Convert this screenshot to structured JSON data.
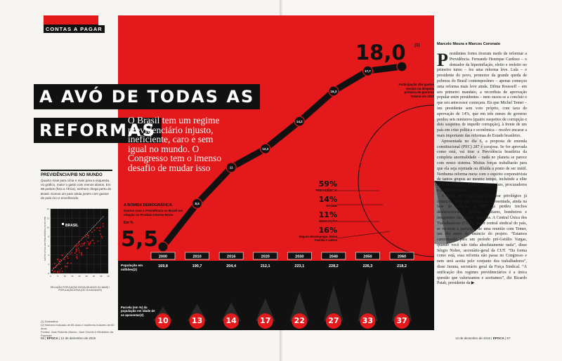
{
  "section": "CONTAS A PAGAR",
  "headline": {
    "line1": "A AVÓ DE TODAS AS",
    "line2": "REFORMAS"
  },
  "standfirst": "O Brasil tem um regime previdenciário injusto, ineficiente, caro e sem igual no mundo. O Congresso tem o imenso desafio de mudar isso",
  "sidebar": {
    "title": "PREVIDÊNCIA/PIB NO MUNDO",
    "text": "Quanto mais para cima e mais para a esquerda, no gráfico, maior o gasto com menos idosos. Em 86 países (fora a África), nenhum chega perto do Brasil. Somos um país ainda jovem com gastos de país rico e envelhecido",
    "brasil_label": "BRASIL",
    "y_axis_label": "GASTO ATUAL EM PREVIDÊNCIA (% DO PIB)",
    "x_axis_label": "RELAÇÃO POPULAÇÃO IDOSA (65 ANOS OU MAIS) / POPULAÇÃO ATIVA (DE 15 A 64 ANOS)",
    "y_ticks": [
      "0",
      "2",
      "4",
      "6",
      "8",
      "10",
      "12",
      "14"
    ],
    "x_ticks": [
      "0",
      "5",
      "10",
      "15",
      "20",
      "25",
      "30",
      "35",
      "40"
    ],
    "footnotes": [
      "(1) Estimativa",
      "(2) Número indicado de 65 anos e mulheres maiores de 60 anos",
      "Fontes: José Roberto Afonso, José Cechin e Ministério da Fazenda"
    ]
  },
  "demography": {
    "title": "A BOMBA DEMOGRÁFICA",
    "subtitle": "Gastos com a Previdência no Brasil em relação ao Produto Interno Bruto",
    "unit": "Em %",
    "start_value": "5,5",
    "end_value": "18,0",
    "end_note": "(1)",
    "annotation": "Participação dos gastos sociais na despesa primária do governo federal em 2016",
    "line_values": [
      "5,5",
      "8,5",
      "11",
      "12,3",
      "14,2",
      "16,3",
      "17,7",
      "18,0"
    ],
    "pop_label": "População em milhões(2)",
    "ratio_label": "Parcela (em %) da população em idade de se aposentar(2)"
  },
  "chart_data": {
    "type": "line",
    "title": "A BOMBA DEMOGRÁFICA",
    "ylabel": "Em %",
    "x": [
      "2000",
      "2010",
      "2016",
      "2020",
      "2030",
      "2040",
      "2050",
      "2060"
    ],
    "series": [
      {
        "name": "Gastos com a Previdência/PIB",
        "values": [
          5.5,
          8.5,
          11,
          12.3,
          14.2,
          16.3,
          17.7,
          18.0
        ]
      }
    ],
    "population_millions": [
      "169,8",
      "190,7",
      "204,4",
      "212,1",
      "223,1",
      "228,2",
      "226,3",
      "218,2"
    ],
    "retirement_age_share": [
      "10",
      "13",
      "14",
      "17",
      "22",
      "27",
      "33",
      "37"
    ]
  },
  "social_spending": [
    {
      "value": "59%",
      "label": "PREVIDÊNCIA"
    },
    {
      "value": "14%",
      "label": "SAÚDE"
    },
    {
      "value": "11%",
      "label": "EDUCAÇÃO"
    },
    {
      "value": "16%",
      "label": "Seguro-desemprego, Bolsa Família e outros"
    }
  ],
  "article": {
    "byline": "Marcelo Moura e Marcos Coronato",
    "paragraphs": [
      "Presidentes fortes tiveram medo de reformar a Previdência. Fernando Henrique Cardoso – o domador da hiperinflação, eleito e reeleito no primeiro turno – fez uma reforma leve. Lula – o presidente do povo, promotor da grande queda de pobreza do Brasil contemporâneo – apenas começou uma reforma mais leve ainda. Dilma Rousseff – em seu primeiro mandato, a recordista de aprovação popular entre presidentes – nem ousou se a concluir o que seu antecessor começara. Eis que Michel Temer – um presidente sem voto próprio, com taxa de aprovação de 14%, que em três meses de governo perdeu seis ministros (quatro suspeitos de corrupção e dois suspeitos de impedir corrupção), à frente de um país em crise política e econômica – resolve encarar a mais importante das reformas do Estado brasileiro.",
      "Apresentada no dia 6, a proposta de emenda constitucional (PEC) 287 é corajosa. Se for aprovada como está, vai tirar a Previdência brasileira da completa anormalidade – nada no planeta se parece com nosso sistema. Muitas forças trabalharão para que ela seja rejeitada ou diluída a ponto de ser inútil. Nenhuma reforma mexe com o espírito corporativista de tantos grupos ao mesmo tempo, incluindo a elite do funcionalismo público, como juízes, procuradores e auditores fiscais.",
      "A briga de força para preservar privilégios já começou. Dois dias depois de apresentada, ainda na fase de redação, a PEC já perdeu trechos desfavoráveis a policiais militares, bombeiros e integrantes das Forças Armadas. A Central Única dos Trabalhadores (CUT), maior central sindical do país, se recusou a participar de uma reunião com Temer, um dia antes do anúncio do projeto. “Estamos caminhando para um período pré-Getúlio Vargas, quando você não tinha absolutamente nada”, disse Sérgio Nobre, secretário-geral da CUT. “Da forma como está, essa reforma não passa no Congresso e nem será aceita pelo conjunto dos trabalhadores”, disse Juruna, secretário geral da Força Sindical. “A unificação dos regimes previdenciários é a única questão que valorizamos e aceitamos”, diz Ricardo Patah, presidente da ▶"
    ]
  },
  "folio_left": {
    "page": "56",
    "brand": "ÉPOCA",
    "date": "12 de dezembro de 2016"
  },
  "folio_right": {
    "page": "57",
    "brand": "ÉPOCA",
    "date": "12 de dezembro de 2016"
  },
  "colors": {
    "accent": "#e3191b",
    "ink": "#111111",
    "paper": "#f7f5f1"
  }
}
